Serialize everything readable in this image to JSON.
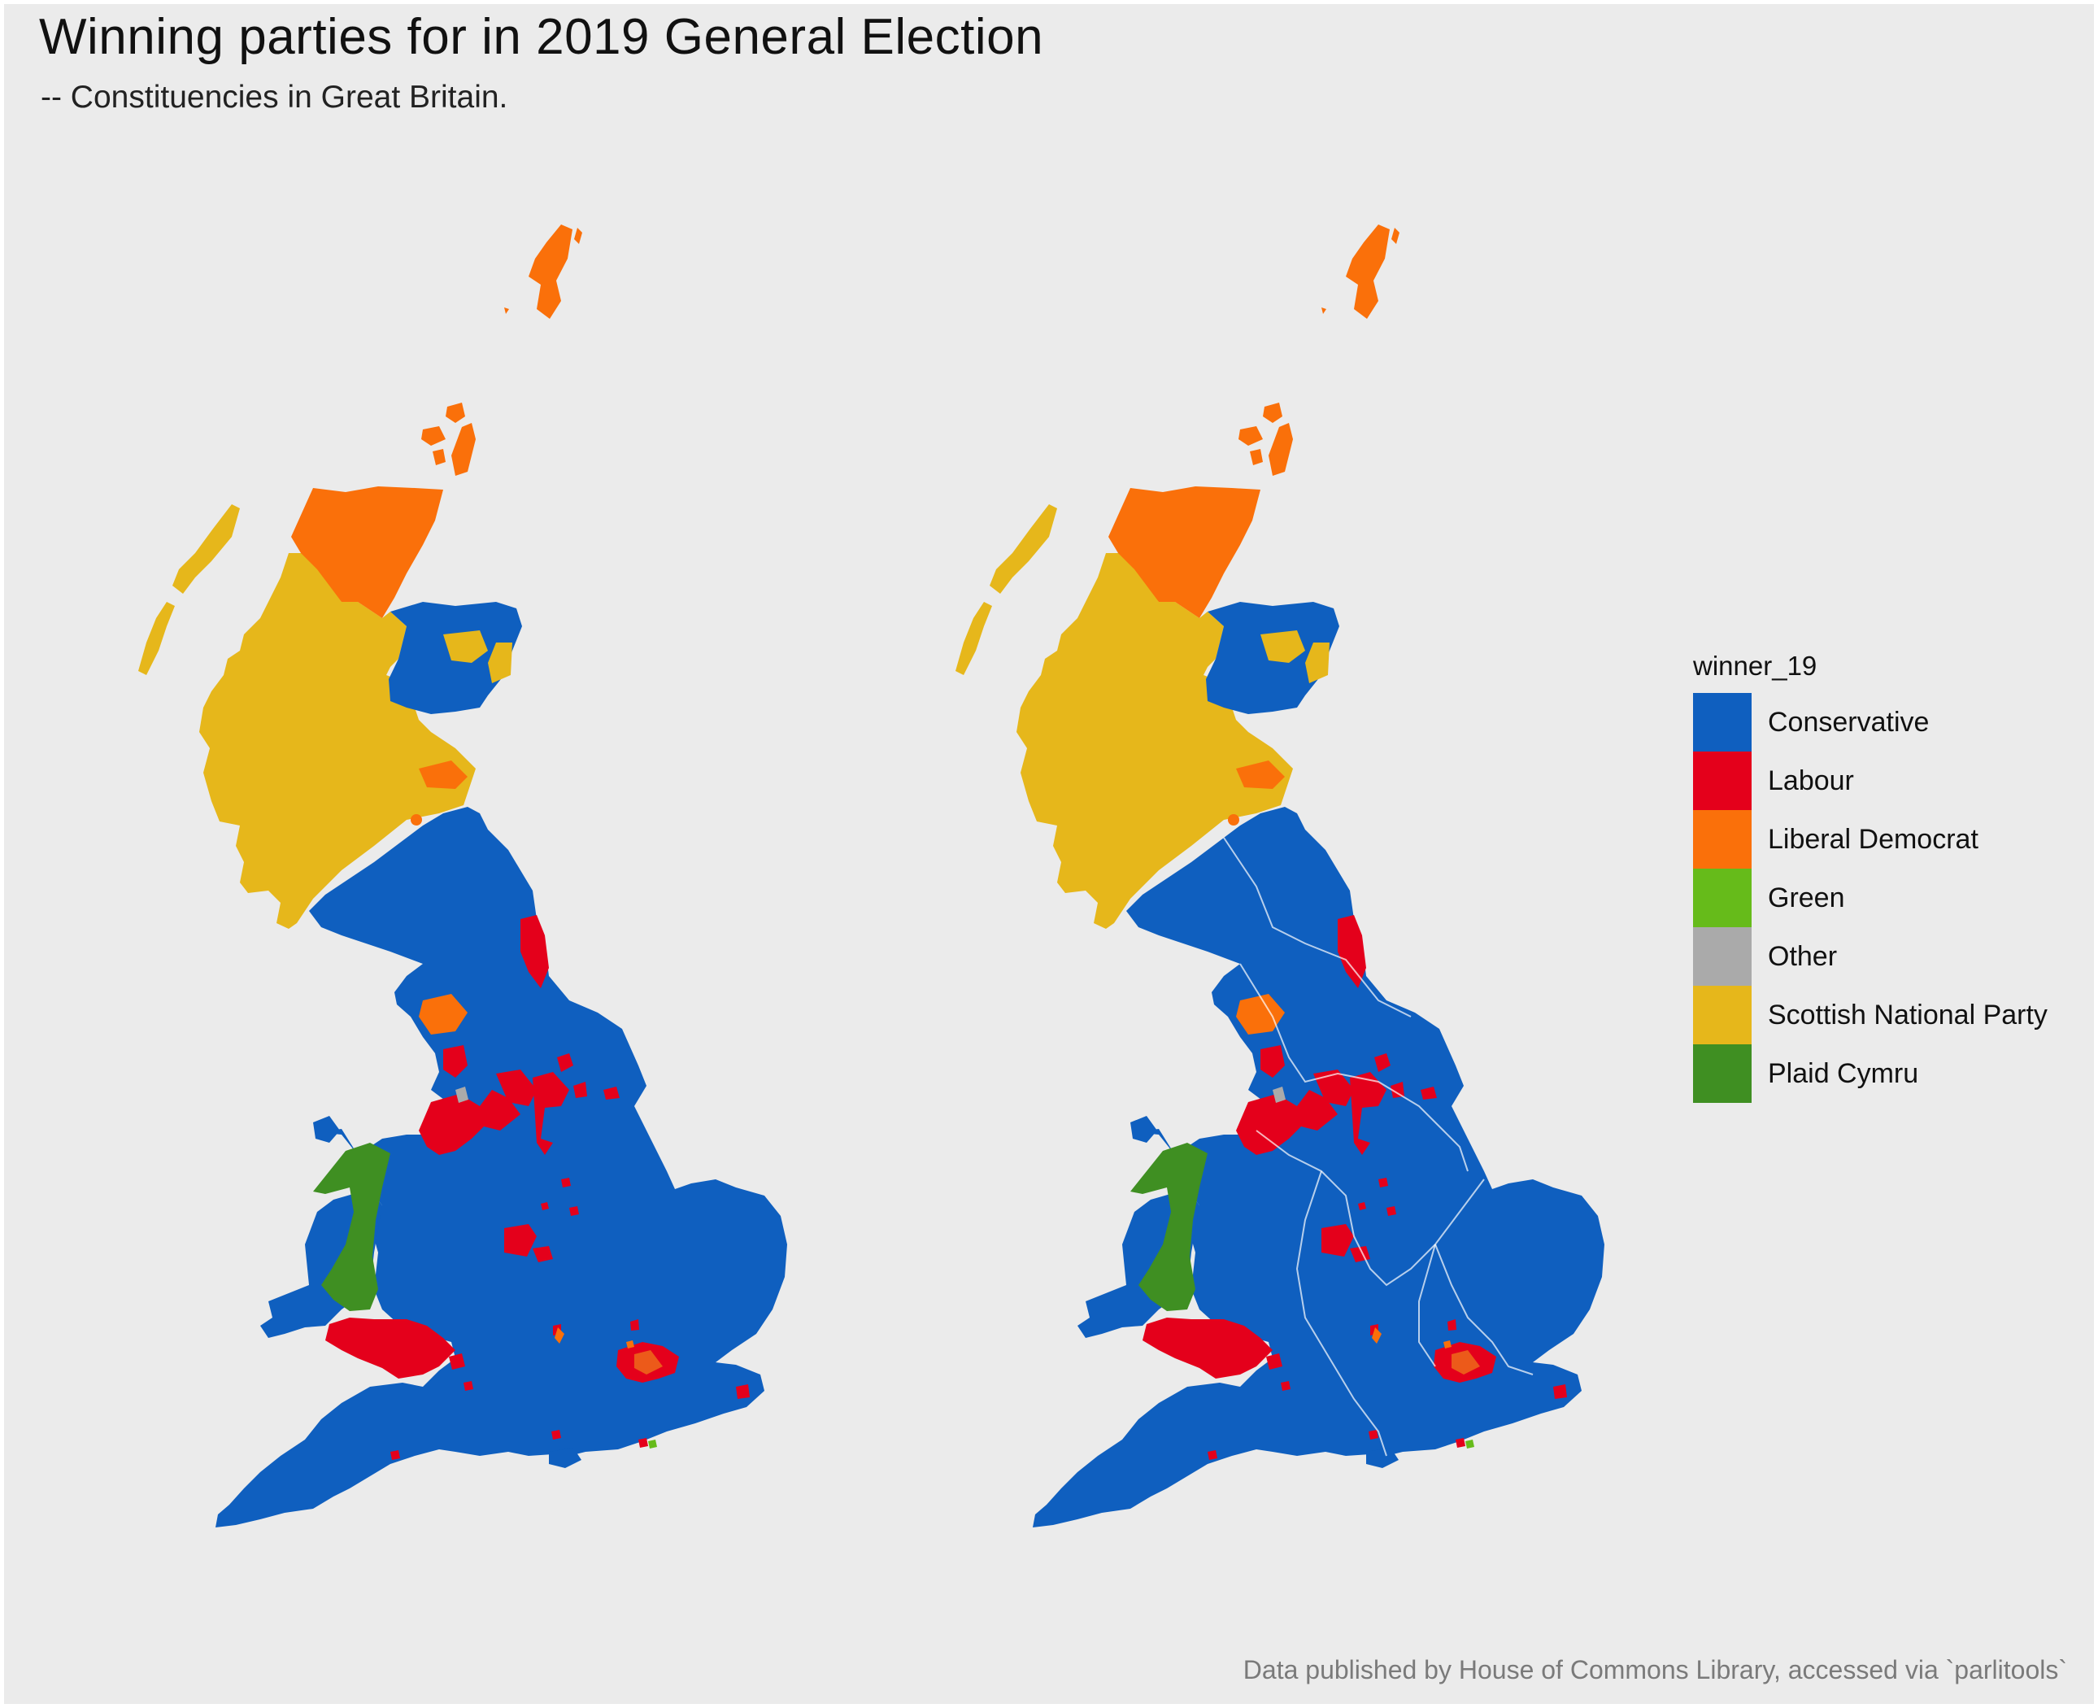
{
  "header": {
    "title": "Winning parties for in 2019 General Election",
    "subtitle": "-- Constituencies in Great Britain."
  },
  "caption": "Data published by House of Commons Library, accessed via `parlitools`",
  "legend": {
    "title": "winner_19",
    "items": [
      {
        "label": "Conservative",
        "color": "#0f5fbf"
      },
      {
        "label": "Labour",
        "color": "#e4001b"
      },
      {
        "label": "Liberal Democrat",
        "color": "#fa700a"
      },
      {
        "label": "Green",
        "color": "#66bb1a"
      },
      {
        "label": "Other",
        "color": "#aaaaaa"
      },
      {
        "label": "Scottish National Party",
        "color": "#e6b71b"
      },
      {
        "label": "Plaid Cymru",
        "color": "#3f8f22"
      }
    ]
  },
  "maps": [
    {
      "name": "constituencies"
    },
    {
      "name": "constituencies-with-region-borders"
    }
  ]
}
